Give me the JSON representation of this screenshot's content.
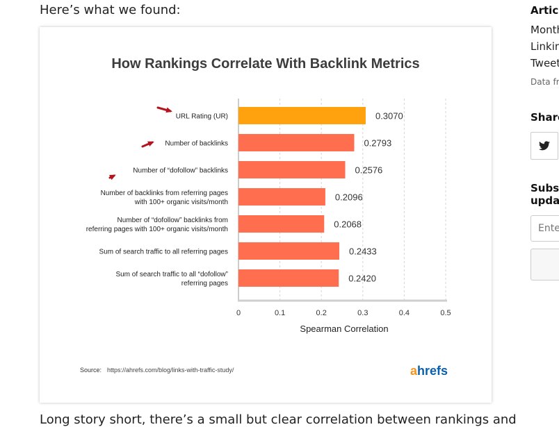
{
  "article": {
    "intro_text": "Here’s what we found:",
    "outro_text": "Long story short, there’s a small but clear correlation between rankings and"
  },
  "figure": {
    "source_label": "Source:",
    "source_url": "https://ahrefs.com/blog/links-with-traffic-study/",
    "logo_a": "a",
    "logo_rest": "hrefs",
    "logo_colors": {
      "a": "#f7931e",
      "rest": "#0a60ab"
    }
  },
  "chart_data": {
    "type": "bar",
    "orientation": "horizontal",
    "title": "How Rankings Correlate With Backlink Metrics",
    "xlabel": "Spearman Correlation",
    "xlim": [
      0,
      0.5
    ],
    "xticks": [
      "0",
      "0.1",
      "0.2",
      "0.3",
      "0.4",
      "0.5"
    ],
    "grid": "vertical dashed",
    "categories": [
      [
        "URL Rating (UR)"
      ],
      [
        "Number of backlinks"
      ],
      [
        "Number of “dofollow” backlinks"
      ],
      [
        "Number of backlinks from referring pages",
        "with 100+ organic visits/month"
      ],
      [
        "Number of “dofollow” backlinks from",
        "referring pages with 100+ organic visits/month"
      ],
      [
        "Sum of search traffic to all referring pages"
      ],
      [
        "Sum of search traffic to all “dofollow”",
        "referring pages"
      ]
    ],
    "values": [
      0.307,
      0.2793,
      0.2576,
      0.2096,
      0.2068,
      0.2433,
      0.242
    ],
    "value_labels": [
      "0.3070",
      "0.2793",
      "0.2576",
      "0.2096",
      "0.2068",
      "0.2433",
      "0.2420"
    ],
    "colors": [
      "#ffa20e",
      "#ff6f4f",
      "#ff6f4f",
      "#ff6f4f",
      "#ff6f4f",
      "#ff6f4f",
      "#ff6f4f"
    ],
    "annotation_arrow_color": "#b3141e"
  },
  "sidebar": {
    "articles_heading": "Article",
    "links": [
      "Month",
      "Linkin",
      "Tweet"
    ],
    "data_note": "Data fro",
    "share_heading": "Share",
    "share_icon": "twitter-bird-icon",
    "subscribe_heading_lines": [
      "Subsc",
      "updat"
    ],
    "email_placeholder": "Ente"
  }
}
